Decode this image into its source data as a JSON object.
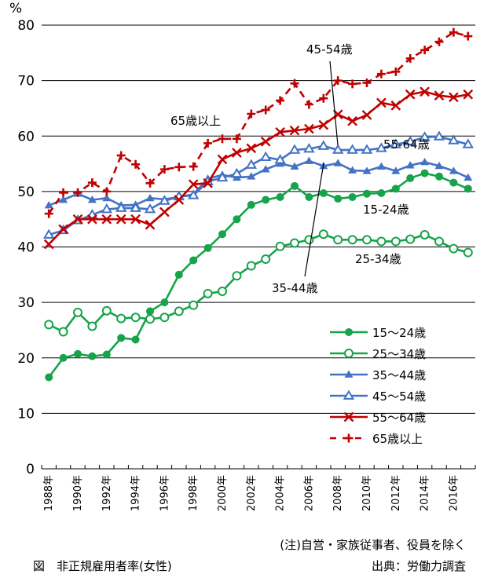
{
  "chart_data": {
    "type": "line",
    "title": "図　非正規雇用者率(女性)",
    "ylabel": "%",
    "xlabel": "",
    "ylim": [
      0,
      80
    ],
    "yticks": [
      0,
      10,
      20,
      30,
      40,
      50,
      60,
      70,
      80
    ],
    "grid": true,
    "x": [
      1988,
      1989,
      1990,
      1991,
      1992,
      1993,
      1994,
      1995,
      1996,
      1997,
      1998,
      1999,
      2000,
      2001,
      2002,
      2003,
      2004,
      2005,
      2006,
      2007,
      2008,
      2009,
      2010,
      2011,
      2012,
      2013,
      2014,
      2015,
      2016,
      2017
    ],
    "xtick_labels": [
      "1988年",
      "1990年",
      "1992年",
      "1994年",
      "1996年",
      "1998年",
      "2000年",
      "2002年",
      "2004年",
      "2006年",
      "2008年",
      "2010年",
      "2012年",
      "2014年",
      "2016年"
    ],
    "series": [
      {
        "name": "15～24歳",
        "color": "#16a34a",
        "marker": "filled-circle",
        "dash": false,
        "values": [
          16.5,
          20.0,
          20.7,
          20.3,
          20.6,
          23.6,
          23.3,
          28.4,
          30.0,
          35.0,
          37.6,
          39.8,
          42.3,
          45.0,
          47.6,
          48.5,
          49.0,
          51.0,
          49.0,
          49.7,
          48.7,
          49.0,
          49.6,
          49.7,
          50.5,
          52.4,
          53.3,
          52.7,
          51.6,
          50.5
        ]
      },
      {
        "name": "25～34歳",
        "color": "#16a34a",
        "marker": "hollow-circle",
        "dash": false,
        "values": [
          26.0,
          24.7,
          28.2,
          25.7,
          28.5,
          27.1,
          27.3,
          27.0,
          27.3,
          28.4,
          29.5,
          31.6,
          32.0,
          34.8,
          36.6,
          37.8,
          40.1,
          40.7,
          41.3,
          42.3,
          41.3,
          41.3,
          41.3,
          41.0,
          41.0,
          41.4,
          42.2,
          41.0,
          39.7,
          39.0
        ]
      },
      {
        "name": "35～44歳",
        "color": "#4472c4",
        "marker": "filled-triangle",
        "dash": false,
        "values": [
          47.5,
          48.5,
          49.6,
          48.5,
          48.8,
          47.5,
          47.6,
          48.8,
          48.6,
          49.0,
          49.5,
          52.3,
          53.0,
          52.5,
          52.7,
          54.0,
          55.0,
          54.5,
          55.5,
          54.6,
          55.1,
          53.8,
          53.7,
          54.5,
          53.7,
          54.7,
          55.3,
          54.6,
          53.7,
          52.5
        ]
      },
      {
        "name": "45～54歳",
        "color": "#4472c4",
        "marker": "hollow-triangle",
        "dash": false,
        "values": [
          42.2,
          43.0,
          44.8,
          45.8,
          46.8,
          47.0,
          47.0,
          46.8,
          48.3,
          49.1,
          49.3,
          51.8,
          52.5,
          53.2,
          54.8,
          56.2,
          55.7,
          57.5,
          57.7,
          58.2,
          57.5,
          57.5,
          57.5,
          57.8,
          58.5,
          59.0,
          59.8,
          59.9,
          59.2,
          58.5
        ]
      },
      {
        "name": "55～64歳",
        "color": "#c00000",
        "marker": "x",
        "dash": false,
        "values": [
          40.5,
          43.2,
          45.0,
          45.0,
          45.0,
          45.0,
          45.0,
          44.0,
          46.3,
          48.5,
          51.3,
          51.5,
          55.8,
          57.0,
          57.8,
          59.0,
          60.7,
          61.0,
          61.3,
          62.0,
          63.9,
          62.7,
          63.8,
          66.0,
          65.5,
          67.5,
          68.0,
          67.3,
          67.0,
          67.5
        ]
      },
      {
        "name": "65歳以上",
        "color": "#c00000",
        "marker": "plus",
        "dash": true,
        "values": [
          46.0,
          49.8,
          49.8,
          51.6,
          50.0,
          56.5,
          54.9,
          51.5,
          54.0,
          54.4,
          54.5,
          58.7,
          59.5,
          59.5,
          64.0,
          64.7,
          66.4,
          69.5,
          65.7,
          66.8,
          70.0,
          69.4,
          69.6,
          71.2,
          71.6,
          74.0,
          75.5,
          77.0,
          78.7,
          78.0
        ]
      }
    ],
    "legend_position": "bottom-right",
    "annotations": [
      {
        "text": "45-54歳",
        "points_to": {
          "series": "45～54歳",
          "x": 2007
        }
      },
      {
        "text": "65歳以上",
        "points_to": null
      },
      {
        "text": "55-64歳",
        "points_to": null
      },
      {
        "text": "15-24歳",
        "points_to": null
      },
      {
        "text": "25-34歳",
        "points_to": null
      },
      {
        "text": "35-44歳",
        "points_to": {
          "series": "35～44歳",
          "x": 2006
        }
      }
    ]
  },
  "footer": {
    "note": "(注)自営・家族従事者、役員を除く",
    "title": "図　非正規雇用者率(女性)",
    "source": "出典：労働力調査"
  }
}
